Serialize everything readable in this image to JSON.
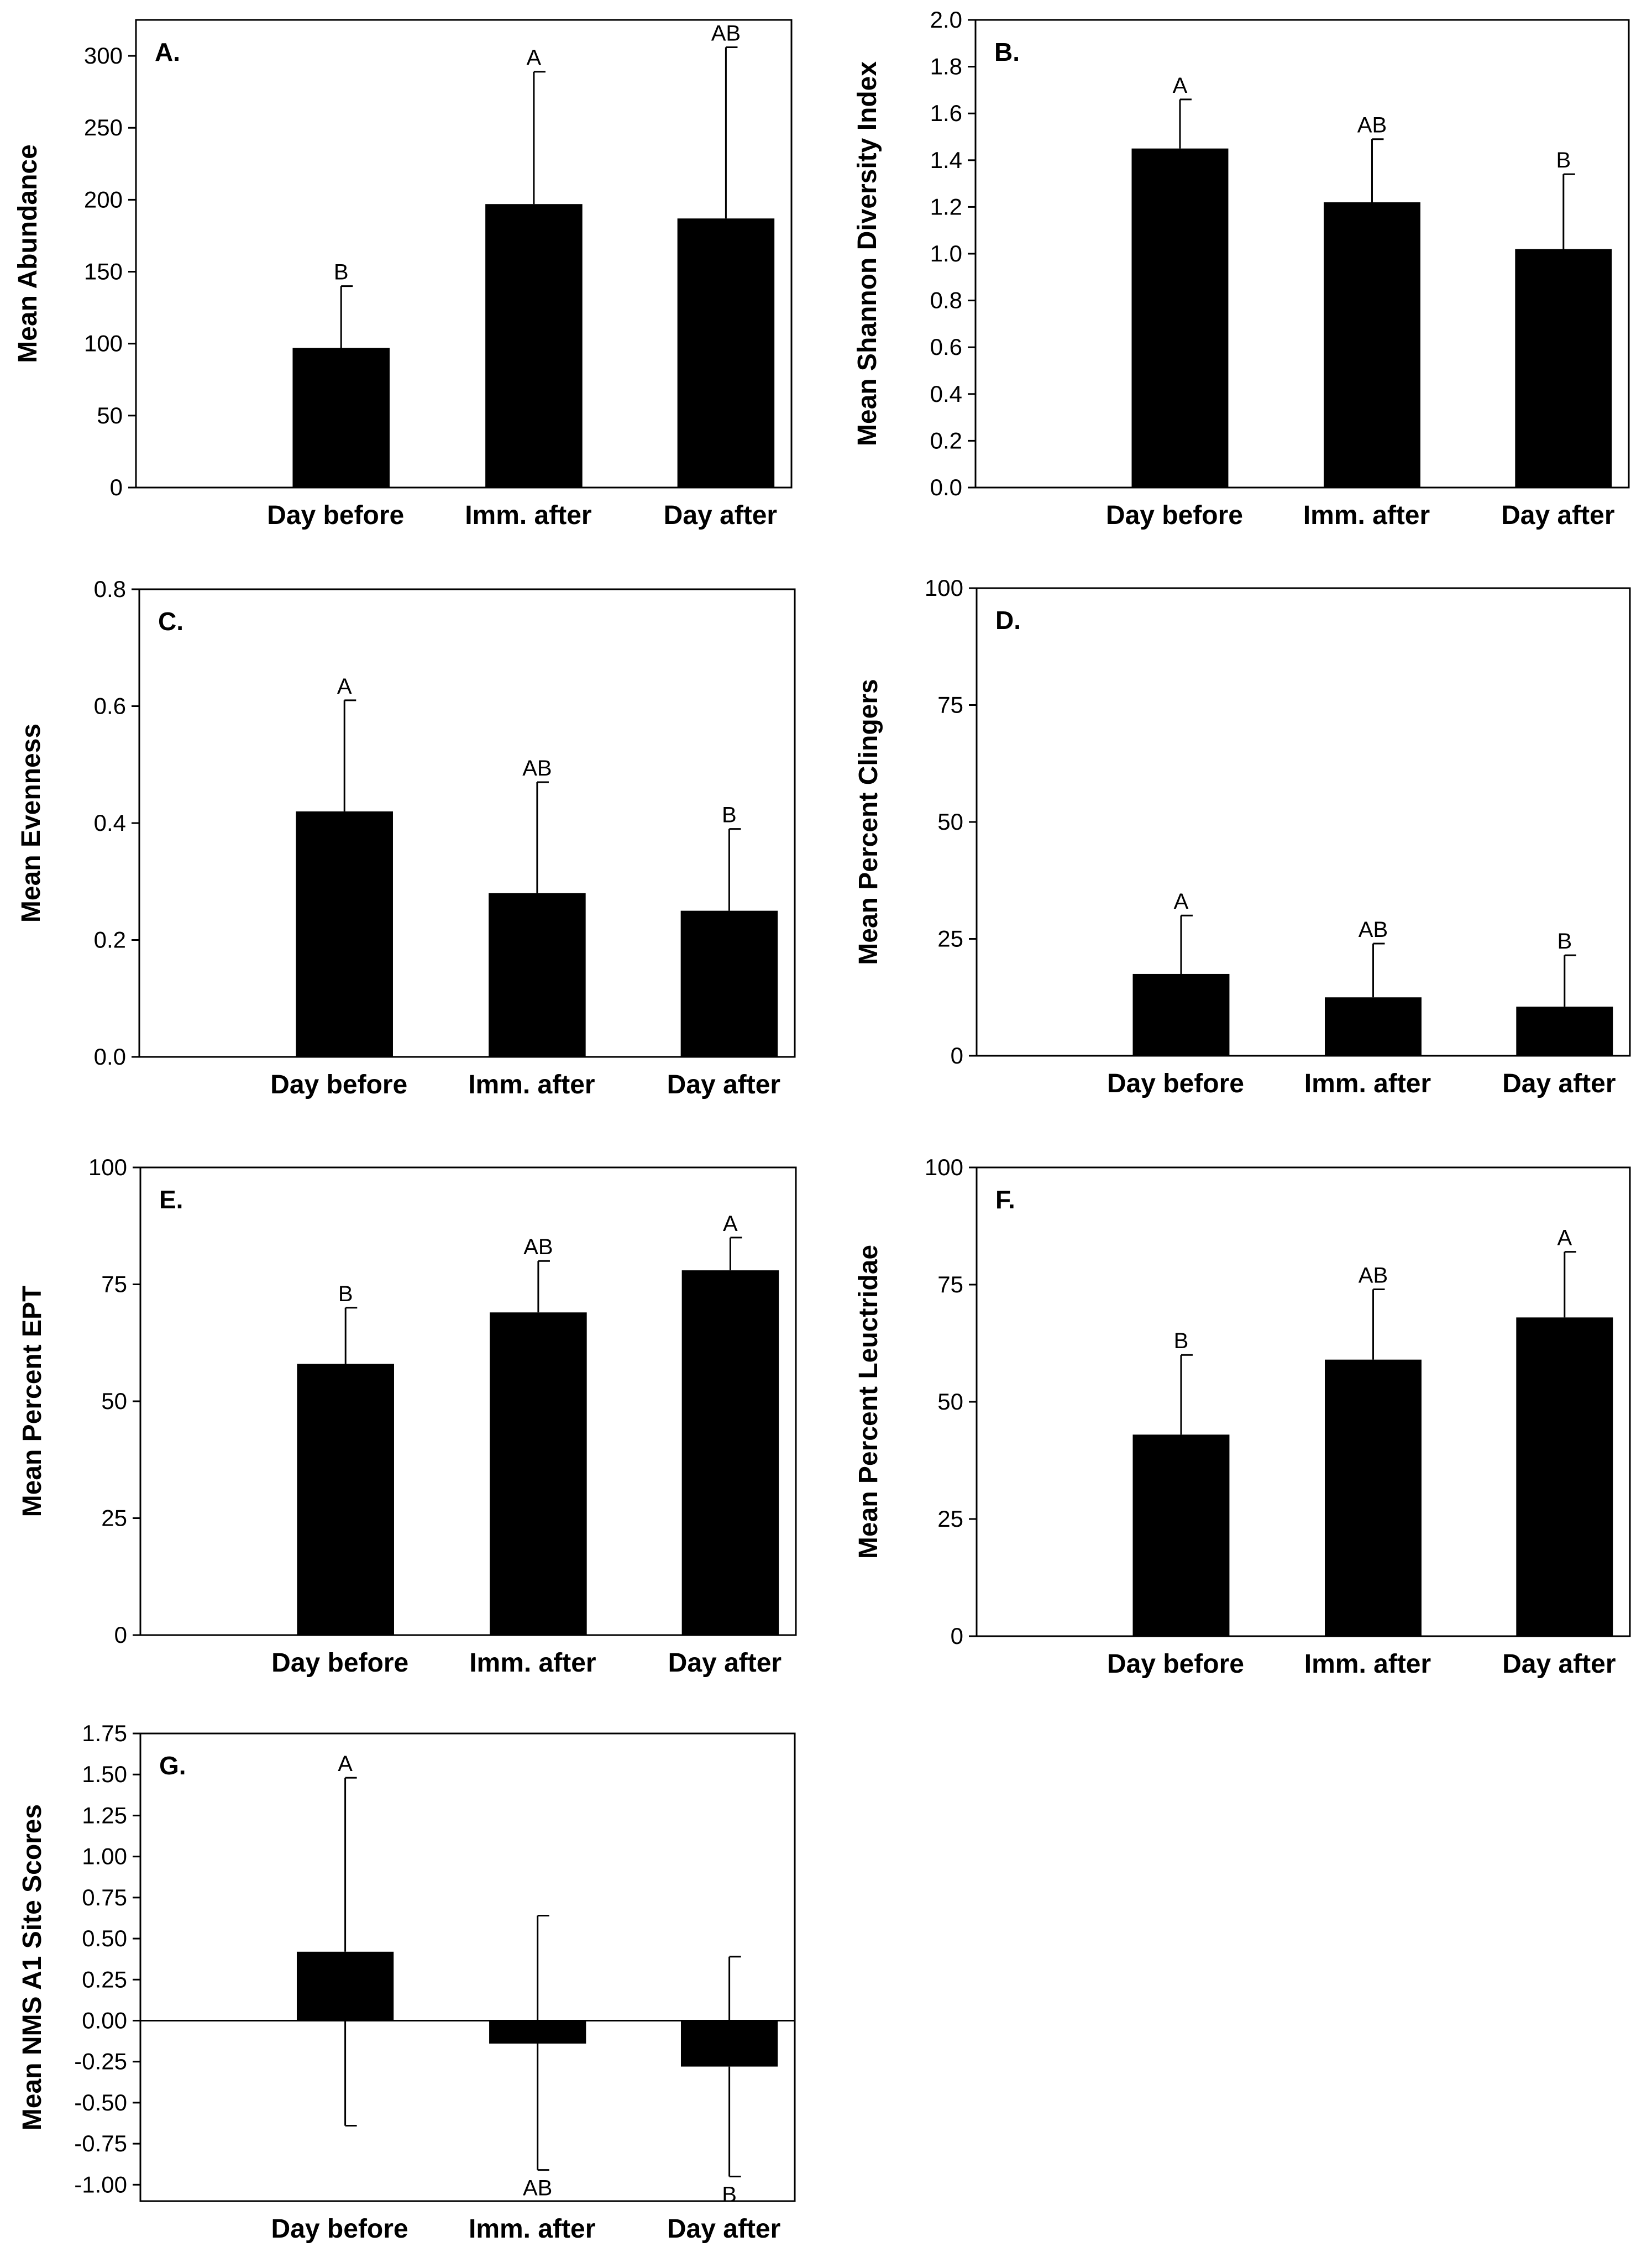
{
  "chart_data": [
    {
      "type": "bar",
      "panel_label": "A.",
      "ylabel": "Mean Abundance",
      "categories": [
        "Day before",
        "Imm. after",
        "Day after"
      ],
      "values": [
        97,
        197,
        187
      ],
      "error_upper": [
        140,
        289,
        306
      ],
      "error_lower": [
        null,
        null,
        null
      ],
      "significance": [
        "B",
        "A",
        "AB"
      ],
      "ylim": [
        0,
        325
      ],
      "yticks": [
        0,
        50,
        100,
        150,
        200,
        250,
        300
      ],
      "ytick_labels": [
        "0",
        "50",
        "100",
        "150",
        "200",
        "250",
        "300"
      ],
      "zero_line": false
    },
    {
      "type": "bar",
      "panel_label": "B.",
      "ylabel": "Mean Shannon Diversity Index",
      "categories": [
        "Day before",
        "Imm. after",
        "Day after"
      ],
      "values": [
        1.45,
        1.22,
        1.02
      ],
      "error_upper": [
        1.66,
        1.49,
        1.34
      ],
      "error_lower": [
        null,
        null,
        null
      ],
      "significance": [
        "A",
        "AB",
        "B"
      ],
      "ylim": [
        0,
        2.0
      ],
      "yticks": [
        0,
        0.2,
        0.4,
        0.6,
        0.8,
        1.0,
        1.2,
        1.4,
        1.6,
        1.8,
        2.0
      ],
      "ytick_labels": [
        "0.0",
        "0.2",
        "0.4",
        "0.6",
        "0.8",
        "1.0",
        "1.2",
        "1.4",
        "1.6",
        "1.8",
        "2.0"
      ],
      "zero_line": false
    },
    {
      "type": "bar",
      "panel_label": "C.",
      "ylabel": "Mean Evenness",
      "categories": [
        "Day before",
        "Imm. after",
        "Day after"
      ],
      "values": [
        0.42,
        0.28,
        0.25
      ],
      "error_upper": [
        0.61,
        0.47,
        0.39
      ],
      "error_lower": [
        null,
        null,
        null
      ],
      "significance": [
        "A",
        "AB",
        "B"
      ],
      "ylim": [
        0,
        0.8
      ],
      "yticks": [
        0,
        0.2,
        0.4,
        0.6,
        0.8
      ],
      "ytick_labels": [
        "0.0",
        "0.2",
        "0.4",
        "0.6",
        "0.8"
      ],
      "zero_line": false
    },
    {
      "type": "bar",
      "panel_label": "D.",
      "ylabel": "Mean Percent Clingers",
      "categories": [
        "Day before",
        "Imm. after",
        "Day after"
      ],
      "values": [
        17.5,
        12.5,
        10.5
      ],
      "error_upper": [
        30,
        24,
        21.5
      ],
      "error_lower": [
        null,
        null,
        null
      ],
      "significance": [
        "A",
        "AB",
        "B"
      ],
      "ylim": [
        0,
        100
      ],
      "yticks": [
        0,
        25,
        50,
        75,
        100
      ],
      "ytick_labels": [
        "0",
        "25",
        "50",
        "75",
        "100"
      ],
      "zero_line": false
    },
    {
      "type": "bar",
      "panel_label": "E.",
      "ylabel": "Mean Percent EPT",
      "categories": [
        "Day before",
        "Imm. after",
        "Day after"
      ],
      "values": [
        58,
        69,
        78
      ],
      "error_upper": [
        70,
        80,
        85
      ],
      "error_lower": [
        null,
        null,
        null
      ],
      "significance": [
        "B",
        "AB",
        "A"
      ],
      "ylim": [
        0,
        100
      ],
      "yticks": [
        0,
        25,
        50,
        75,
        100
      ],
      "ytick_labels": [
        "0",
        "25",
        "50",
        "75",
        "100"
      ],
      "zero_line": false
    },
    {
      "type": "bar",
      "panel_label": "F.",
      "ylabel": "Mean Percent Leuctridae",
      "categories": [
        "Day before",
        "Imm. after",
        "Day after"
      ],
      "values": [
        43,
        59,
        68
      ],
      "error_upper": [
        60,
        74,
        82
      ],
      "error_lower": [
        null,
        null,
        null
      ],
      "significance": [
        "B",
        "AB",
        "A"
      ],
      "ylim": [
        0,
        100
      ],
      "yticks": [
        0,
        25,
        50,
        75,
        100
      ],
      "ytick_labels": [
        "0",
        "25",
        "50",
        "75",
        "100"
      ],
      "zero_line": false
    },
    {
      "type": "bar",
      "panel_label": "G.",
      "ylabel": "Mean NMS A1 Site Scores",
      "categories": [
        "Day before",
        "Imm. after",
        "Day after"
      ],
      "values": [
        0.42,
        -0.14,
        -0.28
      ],
      "error_upper": [
        1.48,
        0.64,
        0.39
      ],
      "error_lower": [
        -0.64,
        -0.91,
        -0.95
      ],
      "significance": [
        "A",
        "AB",
        "B"
      ],
      "significance_position": [
        "top",
        "bottom",
        "bottom"
      ],
      "ylim": [
        -1.1,
        1.75
      ],
      "yticks": [
        -1.0,
        -0.75,
        -0.5,
        -0.25,
        0,
        0.25,
        0.5,
        0.75,
        1.0,
        1.25,
        1.5,
        1.75
      ],
      "ytick_labels": [
        "-1.00",
        "-0.75",
        "-0.50",
        "-0.25",
        "0.00",
        "0.25",
        "0.50",
        "0.75",
        "1.00",
        "1.25",
        "1.50",
        "1.75"
      ],
      "zero_line": true
    }
  ]
}
